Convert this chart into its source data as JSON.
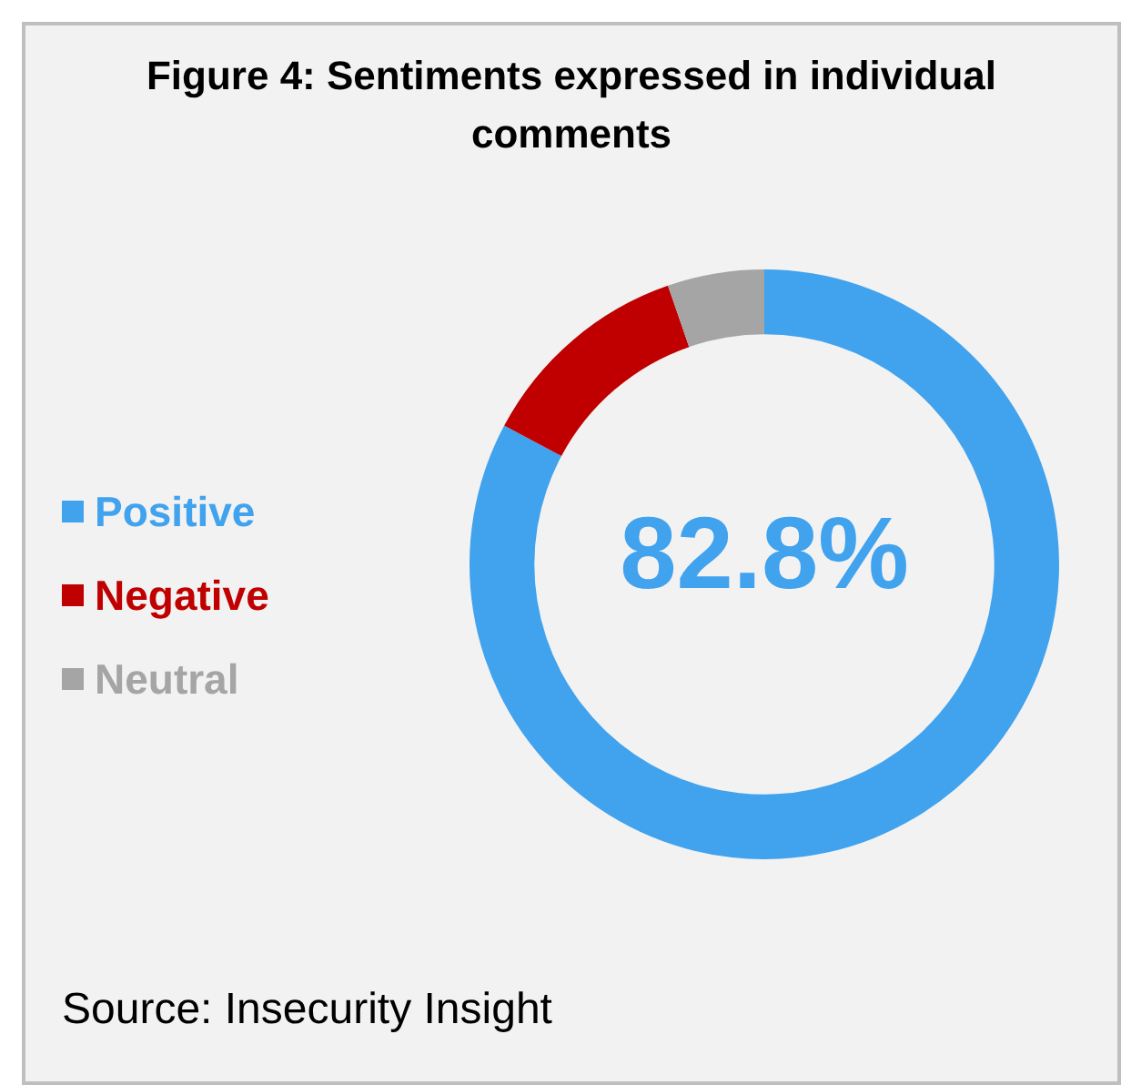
{
  "chart_data": {
    "type": "donut",
    "title": "Figure 4: Sentiments expressed in individual comments",
    "categories": [
      "Positive",
      "Negative",
      "Neutral"
    ],
    "values": [
      82.8,
      11.9,
      5.3
    ],
    "colors": [
      "#41a2ee",
      "#c00000",
      "#a5a5a5"
    ],
    "value_labels": [
      "82.8%",
      null,
      null
    ],
    "legend": "left",
    "annotations": [
      "Source: Insecurity Insight"
    ]
  }
}
